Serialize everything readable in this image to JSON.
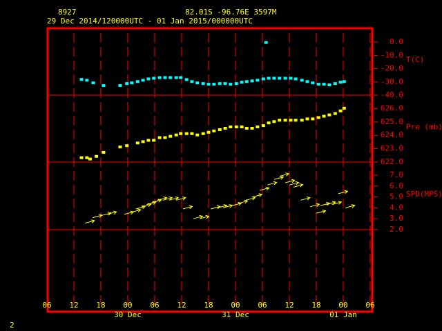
{
  "header": {
    "station": "8927",
    "location": "82.01S  -96.76E  3597M",
    "period": "29 Dec 2014/120000UTC - 01 Jan 2015/000000UTC"
  },
  "page_number": "2",
  "x_axis": {
    "xlim": [
      6,
      78
    ],
    "xticks": [
      {
        "value": 6,
        "label": "06"
      },
      {
        "value": 12,
        "label": "12"
      },
      {
        "value": 18,
        "label": "18"
      },
      {
        "value": 24,
        "label": "00"
      },
      {
        "value": 30,
        "label": "06"
      },
      {
        "value": 36,
        "label": "12"
      },
      {
        "value": 42,
        "label": "18"
      },
      {
        "value": 48,
        "label": "00"
      },
      {
        "value": 54,
        "label": "06"
      },
      {
        "value": 60,
        "label": "12"
      },
      {
        "value": 66,
        "label": "18"
      },
      {
        "value": 72,
        "label": "00"
      },
      {
        "value": 78,
        "label": "06"
      }
    ],
    "dates": [
      {
        "value": 24,
        "label": "30 Dec"
      },
      {
        "value": 48,
        "label": "31 Dec"
      },
      {
        "value": 72,
        "label": "01 Jan"
      }
    ]
  },
  "chart_data": [
    {
      "type": "scatter",
      "y_label": "T(C)",
      "color": "#00ffff",
      "ylim": [
        -40,
        11
      ],
      "yticks": [
        {
          "value": 0,
          "label": "0.0"
        },
        {
          "value": -10,
          "label": "-10.0"
        },
        {
          "value": -20,
          "label": "-20.0"
        },
        {
          "value": -30,
          "label": "-30.0"
        },
        {
          "value": -40,
          "label": "-40.0"
        }
      ],
      "x": [
        13.7,
        14.9,
        16.3,
        18.6,
        22.3,
        23.8,
        24.9,
        26.2,
        27.4,
        28.6,
        29.8,
        31.1,
        32.3,
        33.5,
        34.8,
        35.8,
        37.1,
        38.3,
        39.5,
        40.8,
        42.0,
        43.2,
        44.5,
        45.7,
        46.9,
        48.2,
        49.4,
        50.5,
        51.7,
        52.9,
        54.2,
        54.8,
        55.4,
        56.6,
        57.8,
        59.1,
        60.3,
        61.4,
        62.8,
        64.0,
        65.2,
        66.5,
        67.7,
        68.9,
        70.2,
        71.4,
        72.2
      ],
      "values": [
        -28.4,
        -29,
        -31,
        -33,
        -33,
        -31.5,
        -31,
        -30,
        -29,
        -28,
        -27.5,
        -27,
        -27,
        -27,
        -27,
        -27,
        -28.5,
        -30,
        -31,
        -31.5,
        -32,
        -32,
        -31.5,
        -31.5,
        -32,
        -31.5,
        -30.5,
        -30,
        -29.5,
        -29,
        -28,
        -0.5,
        -27.5,
        -27.5,
        -27.5,
        -27.5,
        -27.5,
        -28,
        -29,
        -30,
        -31,
        -32,
        -32,
        -32.5,
        -31.5,
        -30.5,
        -30
      ]
    },
    {
      "type": "scatter",
      "y_label": "Pre (mb)",
      "color": "#ffff00",
      "ylim": [
        622,
        627
      ],
      "yticks": [
        {
          "value": 626,
          "label": "626.0"
        },
        {
          "value": 625,
          "label": "625.0"
        },
        {
          "value": 624,
          "label": "624.0"
        },
        {
          "value": 623,
          "label": "623.0"
        },
        {
          "value": 622,
          "label": "622.0"
        }
      ],
      "x": [
        13.7,
        14.9,
        15.6,
        17.0,
        18.6,
        22.3,
        23.8,
        26.2,
        27.4,
        28.6,
        29.8,
        31.1,
        32.3,
        33.5,
        34.8,
        35.8,
        37.1,
        38.3,
        39.5,
        40.8,
        42.0,
        43.2,
        44.5,
        45.7,
        46.9,
        48.2,
        49.4,
        50.5,
        51.7,
        52.9,
        54.2,
        55.4,
        56.6,
        57.8,
        59.1,
        60.3,
        61.4,
        62.8,
        64.0,
        65.2,
        66.5,
        67.7,
        68.9,
        70.2,
        71.4,
        72.2
      ],
      "values": [
        622.3,
        622.3,
        622.2,
        622.4,
        622.7,
        623.1,
        623.2,
        623.4,
        623.5,
        623.6,
        623.6,
        623.8,
        623.8,
        623.9,
        624.0,
        624.1,
        624.1,
        624.1,
        624.0,
        624.1,
        624.2,
        624.3,
        624.4,
        624.5,
        624.6,
        624.6,
        624.6,
        624.5,
        624.5,
        624.6,
        624.7,
        624.9,
        625.0,
        625.1,
        625.1,
        625.1,
        625.1,
        625.1,
        625.2,
        625.2,
        625.3,
        625.4,
        625.5,
        625.6,
        625.8,
        626.0
      ]
    },
    {
      "type": "vector",
      "y_label": "SPD(MPS)",
      "color": "#ffff00",
      "ylim": [
        2,
        8.2
      ],
      "yticks": [
        {
          "value": 7,
          "label": "7.0"
        },
        {
          "value": 6,
          "label": "6.0"
        },
        {
          "value": 5,
          "label": "5.0"
        },
        {
          "value": 4,
          "label": "4.0"
        },
        {
          "value": 3,
          "label": "3.0"
        },
        {
          "value": 2,
          "label": "2.0"
        }
      ],
      "x": [
        14.5,
        16.2,
        18.2,
        19.4,
        23.2,
        24.8,
        25.8,
        27.1,
        28.2,
        29.4,
        30.6,
        31.8,
        33.2,
        34.8,
        36.3,
        38.6,
        40.0,
        42.5,
        44.0,
        45.2,
        47.2,
        48.6,
        50.3,
        51.8,
        53.4,
        55.1,
        56.6,
        57.8,
        59.1,
        60.0,
        60.9,
        62.5,
        64.6,
        66.0,
        66.9,
        68.2,
        69.5,
        70.9,
        72.5
      ],
      "values": [
        2.6,
        3.1,
        3.3,
        3.4,
        3.4,
        3.6,
        3.9,
        4.1,
        4.3,
        4.5,
        4.7,
        4.7,
        4.7,
        4.7,
        3.9,
        3.0,
        3.0,
        3.9,
        4.0,
        4.0,
        4.2,
        4.4,
        4.7,
        5.0,
        5.6,
        6.1,
        6.6,
        6.9,
        6.3,
        6.1,
        5.9,
        4.7,
        4.1,
        3.5,
        4.2,
        4.3,
        4.3,
        5.3,
        4.0
      ]
    }
  ]
}
